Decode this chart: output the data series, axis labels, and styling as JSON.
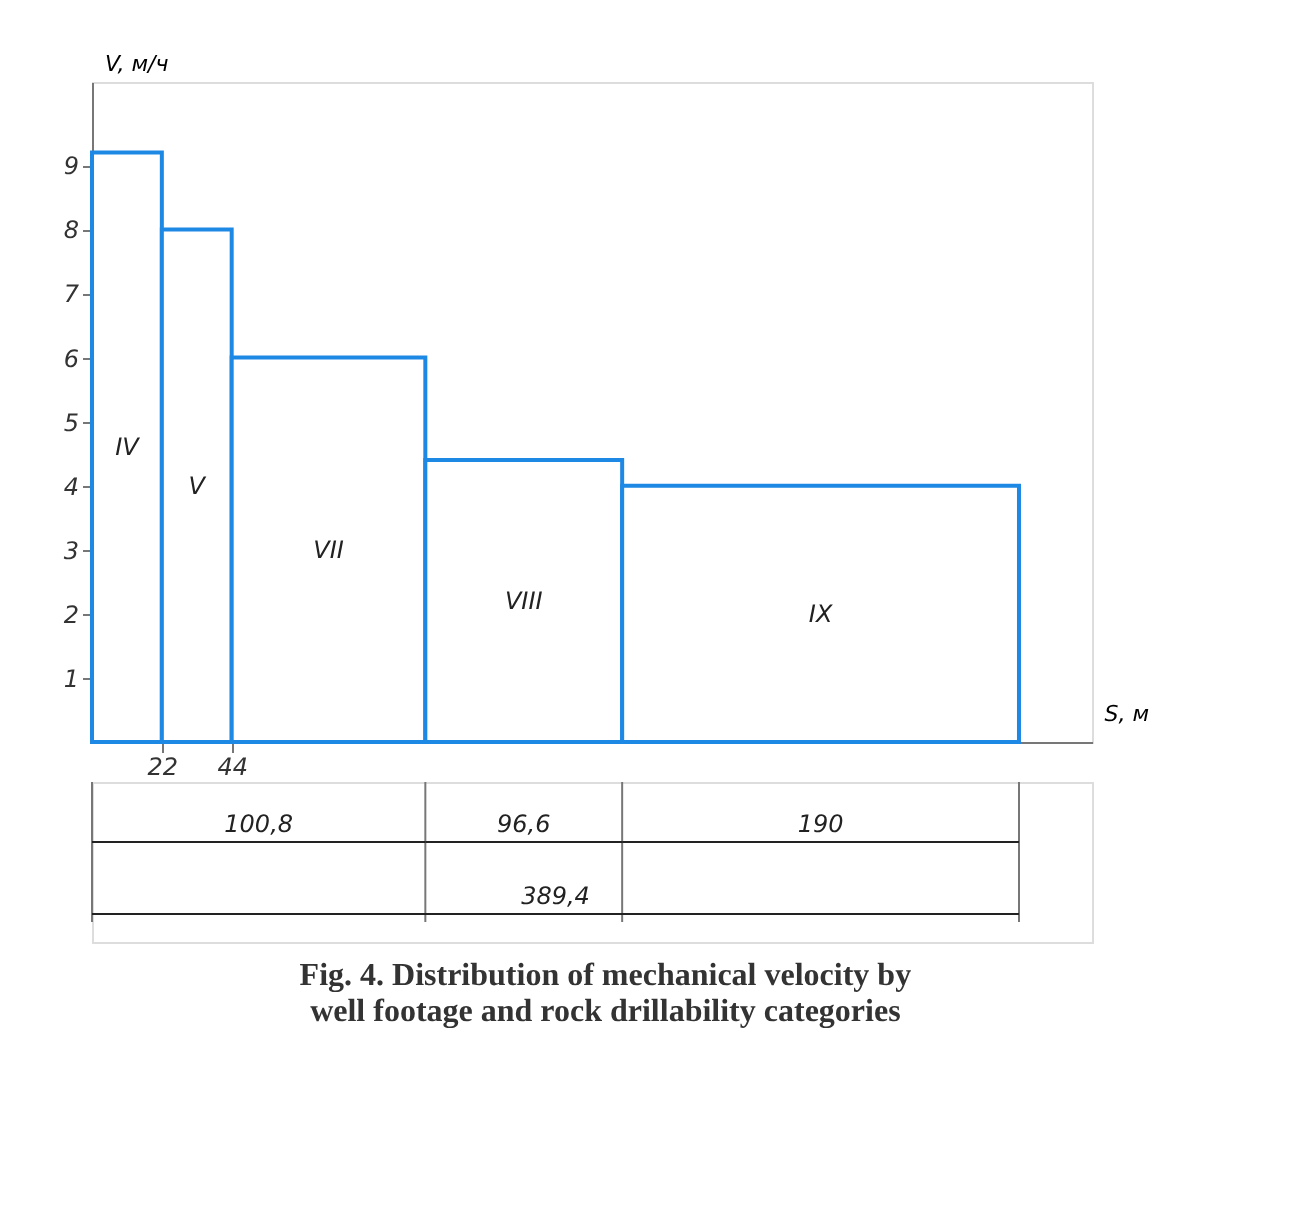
{
  "chart_data": {
    "type": "histogram",
    "title": "Fig. 4. Distribution of mechanical velocity by well footage and rock drillability categories",
    "xlabel": "S, м",
    "ylabel": "V, м/ч",
    "bins": [
      0,
      22,
      44,
      105,
      167,
      292
    ],
    "values": [
      9.2,
      8.0,
      6.0,
      4.4,
      4.0
    ],
    "color": "#1e88e5",
    "xlim": [
      0,
      315
    ],
    "xticks": [
      22,
      44
    ],
    "ylim": [
      0,
      10.3
    ],
    "yticks": [
      1,
      2,
      3,
      4,
      5,
      6,
      7,
      8,
      9
    ],
    "grid": false,
    "annotations": [
      "IV",
      "V",
      "VII",
      "VIII",
      "IX",
      "100,8",
      "96,6",
      "190",
      "389,4"
    ]
  }
}
